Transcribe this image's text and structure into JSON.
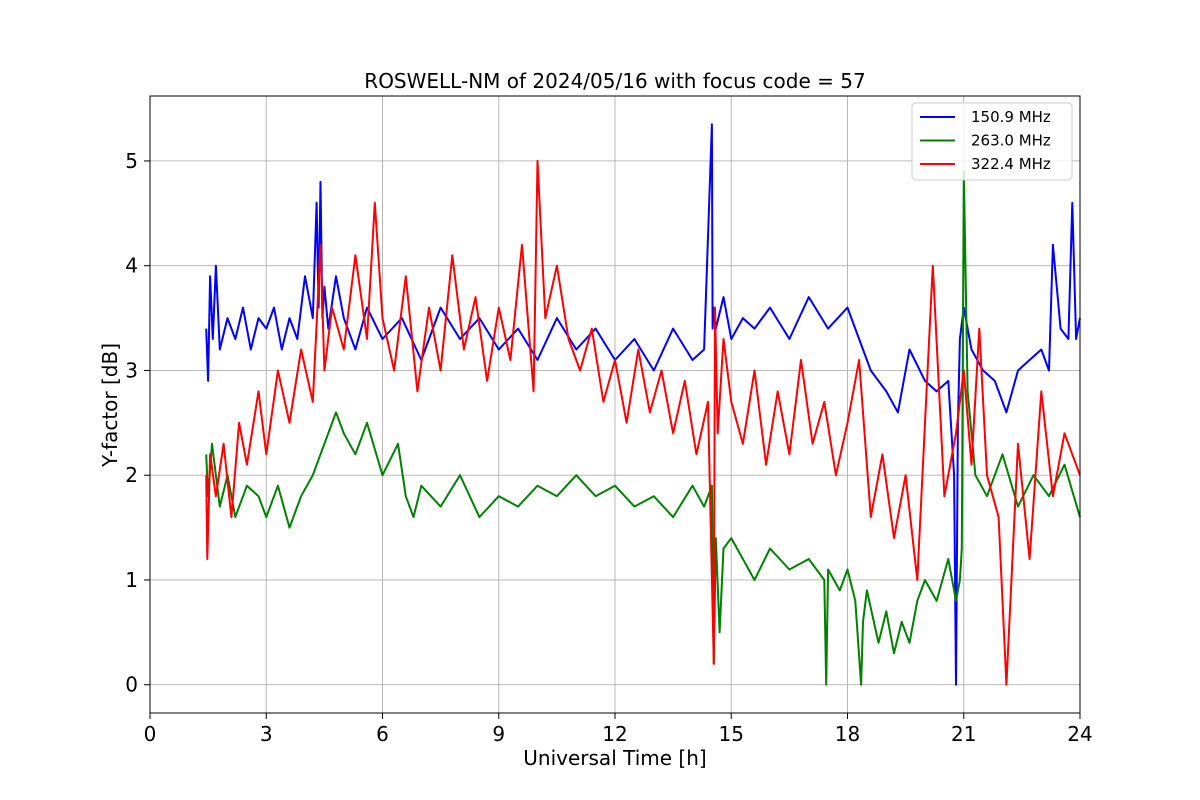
{
  "chart_data": {
    "type": "line",
    "title": "ROSWELL-NM of 2024/05/16 with focus code = 57",
    "xlabel": "Universal Time [h]",
    "ylabel": "Y-factor [dB]",
    "xlim": [
      0,
      24
    ],
    "ylim": [
      -0.27,
      5.62
    ],
    "xticks": [
      0,
      3,
      6,
      9,
      12,
      15,
      18,
      21,
      24
    ],
    "yticks": [
      0,
      1,
      2,
      3,
      4,
      5
    ],
    "grid": true,
    "legend_position": "top-right",
    "series": [
      {
        "name": "150.9 MHz",
        "color": "#0000ff",
        "x": [
          1.45,
          1.5,
          1.55,
          1.62,
          1.7,
          1.8,
          2.0,
          2.2,
          2.4,
          2.6,
          2.8,
          3.0,
          3.2,
          3.4,
          3.6,
          3.8,
          4.0,
          4.2,
          4.3,
          4.35,
          4.4,
          4.45,
          4.5,
          4.6,
          4.8,
          5.0,
          5.3,
          5.6,
          6.0,
          6.5,
          7.0,
          7.5,
          8.0,
          8.5,
          9.0,
          9.5,
          10.0,
          10.5,
          11.0,
          11.5,
          12.0,
          12.5,
          13.0,
          13.5,
          14.0,
          14.3,
          14.5,
          14.52,
          14.55,
          14.6,
          14.8,
          15.0,
          15.3,
          15.6,
          16.0,
          16.5,
          17.0,
          17.5,
          18.0,
          18.3,
          18.6,
          19.0,
          19.3,
          19.6,
          20.0,
          20.3,
          20.6,
          20.75,
          20.8,
          20.85,
          20.9,
          21.0,
          21.2,
          21.5,
          21.8,
          22.1,
          22.4,
          22.7,
          23.0,
          23.2,
          23.3,
          23.5,
          23.7,
          23.8,
          23.9,
          24.0
        ],
        "y": [
          3.4,
          2.9,
          3.9,
          3.3,
          4.0,
          3.2,
          3.5,
          3.3,
          3.6,
          3.2,
          3.5,
          3.4,
          3.6,
          3.2,
          3.5,
          3.3,
          3.9,
          3.5,
          4.6,
          3.6,
          4.8,
          3.5,
          3.8,
          3.4,
          3.9,
          3.5,
          3.2,
          3.6,
          3.3,
          3.5,
          3.1,
          3.6,
          3.3,
          3.5,
          3.2,
          3.4,
          3.1,
          3.5,
          3.2,
          3.4,
          3.1,
          3.3,
          3.0,
          3.4,
          3.1,
          3.2,
          5.35,
          3.4,
          3.6,
          3.4,
          3.7,
          3.3,
          3.5,
          3.4,
          3.6,
          3.3,
          3.7,
          3.4,
          3.6,
          3.3,
          3.0,
          2.8,
          2.6,
          3.2,
          2.9,
          2.8,
          2.9,
          2.0,
          0.0,
          2.5,
          3.3,
          3.6,
          3.2,
          3.0,
          2.9,
          2.6,
          3.0,
          3.1,
          3.2,
          3.0,
          4.2,
          3.4,
          3.3,
          4.6,
          3.3,
          3.5
        ]
      },
      {
        "name": "263.0 MHz",
        "color": "#008000",
        "x": [
          1.45,
          1.5,
          1.6,
          1.8,
          2.0,
          2.2,
          2.5,
          2.8,
          3.0,
          3.3,
          3.6,
          3.9,
          4.2,
          4.5,
          4.8,
          5.0,
          5.3,
          5.6,
          6.0,
          6.4,
          6.6,
          6.8,
          7.0,
          7.5,
          8.0,
          8.5,
          9.0,
          9.5,
          10.0,
          10.5,
          11.0,
          11.5,
          12.0,
          12.5,
          13.0,
          13.5,
          14.0,
          14.3,
          14.5,
          14.55,
          14.6,
          14.7,
          14.8,
          15.0,
          15.3,
          15.6,
          16.0,
          16.5,
          17.0,
          17.4,
          17.45,
          17.5,
          17.8,
          18.0,
          18.2,
          18.35,
          18.4,
          18.5,
          18.8,
          19.0,
          19.2,
          19.4,
          19.6,
          19.8,
          20.0,
          20.3,
          20.6,
          20.8,
          20.9,
          20.95,
          21.0,
          21.1,
          21.3,
          21.6,
          22.0,
          22.4,
          22.8,
          23.2,
          23.6,
          24.0
        ],
        "y": [
          2.2,
          1.8,
          2.3,
          1.7,
          2.0,
          1.6,
          1.9,
          1.8,
          1.6,
          1.9,
          1.5,
          1.8,
          2.0,
          2.3,
          2.6,
          2.4,
          2.2,
          2.5,
          2.0,
          2.3,
          1.8,
          1.6,
          1.9,
          1.7,
          2.0,
          1.6,
          1.8,
          1.7,
          1.9,
          1.8,
          2.0,
          1.8,
          1.9,
          1.7,
          1.8,
          1.6,
          1.9,
          1.7,
          1.9,
          0.2,
          1.4,
          0.5,
          1.3,
          1.4,
          1.2,
          1.0,
          1.3,
          1.1,
          1.2,
          1.0,
          0.0,
          1.1,
          0.9,
          1.1,
          0.8,
          0.0,
          0.6,
          0.9,
          0.4,
          0.7,
          0.3,
          0.6,
          0.4,
          0.8,
          1.0,
          0.8,
          1.2,
          0.8,
          1.0,
          1.3,
          4.9,
          2.8,
          2.0,
          1.8,
          2.2,
          1.7,
          2.0,
          1.8,
          2.1,
          1.6
        ]
      },
      {
        "name": "322.4 MHz",
        "color": "#ff0000",
        "x": [
          1.45,
          1.48,
          1.55,
          1.7,
          1.9,
          2.1,
          2.3,
          2.5,
          2.8,
          3.0,
          3.3,
          3.6,
          3.9,
          4.2,
          4.4,
          4.5,
          4.7,
          5.0,
          5.3,
          5.6,
          5.8,
          6.0,
          6.3,
          6.6,
          6.9,
          7.2,
          7.5,
          7.8,
          8.1,
          8.4,
          8.7,
          9.0,
          9.3,
          9.6,
          9.9,
          10.0,
          10.2,
          10.5,
          10.8,
          11.1,
          11.4,
          11.7,
          12.0,
          12.3,
          12.6,
          12.9,
          13.2,
          13.5,
          13.8,
          14.1,
          14.4,
          14.55,
          14.58,
          14.65,
          14.8,
          15.0,
          15.3,
          15.6,
          15.9,
          16.2,
          16.5,
          16.8,
          17.1,
          17.4,
          17.7,
          18.0,
          18.3,
          18.6,
          18.9,
          19.2,
          19.5,
          19.8,
          20.0,
          20.2,
          20.5,
          20.8,
          21.0,
          21.2,
          21.4,
          21.6,
          21.9,
          22.1,
          22.4,
          22.7,
          23.0,
          23.3,
          23.6,
          24.0
        ],
        "y": [
          2.0,
          1.2,
          2.2,
          1.8,
          2.3,
          1.6,
          2.5,
          2.1,
          2.8,
          2.2,
          3.0,
          2.5,
          3.2,
          2.7,
          4.2,
          3.0,
          3.6,
          3.2,
          4.1,
          3.3,
          4.6,
          3.5,
          3.0,
          3.9,
          2.8,
          3.6,
          3.0,
          4.1,
          3.2,
          3.7,
          2.9,
          3.6,
          3.1,
          4.2,
          2.8,
          5.0,
          3.5,
          4.0,
          3.3,
          3.0,
          3.4,
          2.7,
          3.1,
          2.5,
          3.2,
          2.6,
          3.0,
          2.4,
          2.9,
          2.2,
          2.7,
          0.2,
          3.6,
          2.4,
          3.3,
          2.7,
          2.3,
          3.0,
          2.1,
          2.8,
          2.2,
          3.1,
          2.3,
          2.7,
          2.0,
          2.5,
          3.1,
          1.6,
          2.2,
          1.4,
          2.0,
          1.0,
          2.5,
          4.0,
          1.8,
          2.4,
          3.0,
          2.1,
          3.4,
          2.0,
          1.6,
          0.0,
          2.3,
          1.2,
          2.8,
          1.8,
          2.4,
          2.0
        ]
      }
    ]
  }
}
